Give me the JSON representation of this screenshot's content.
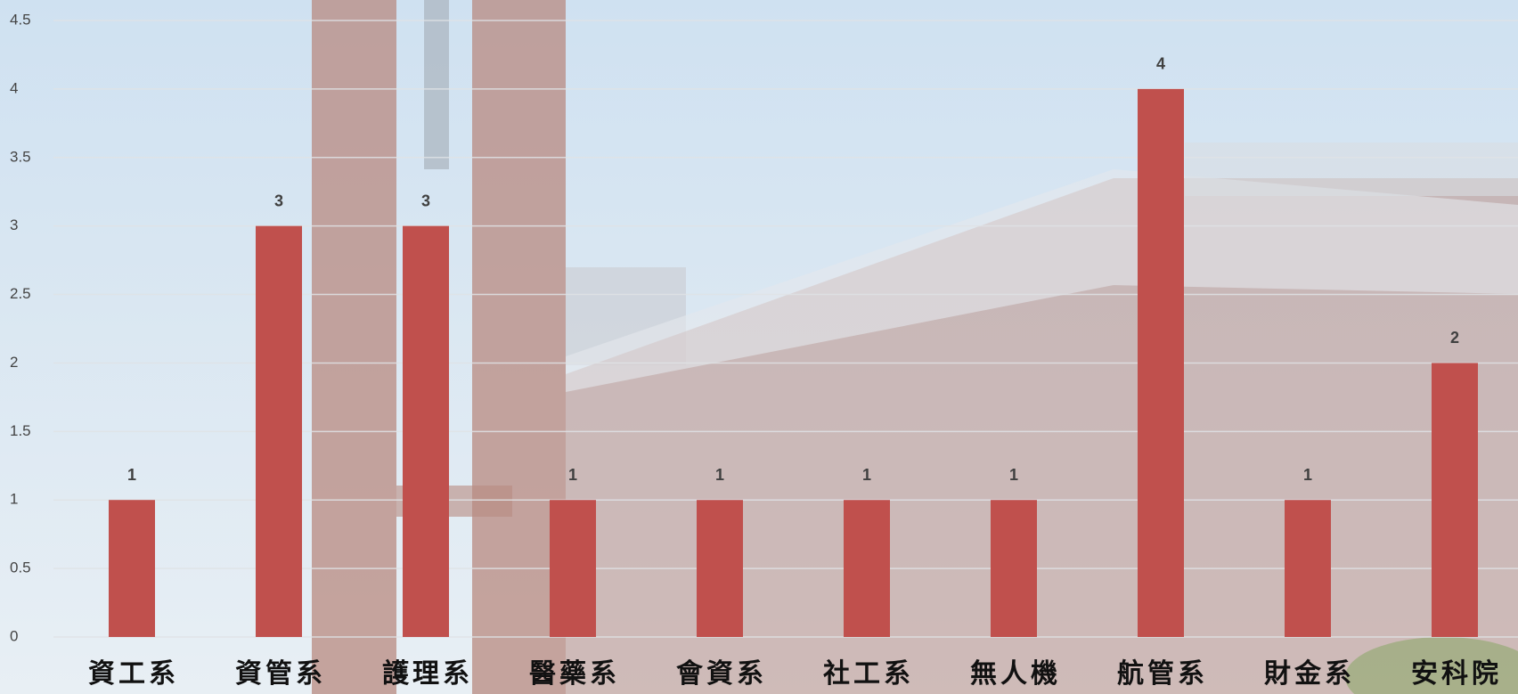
{
  "chart_data": {
    "type": "bar",
    "categories": [
      "資工系",
      "資管系",
      "護理系",
      "醫藥系",
      "會資系",
      "社工系",
      "無人機",
      "航管系",
      "財金系",
      "安科院"
    ],
    "values": [
      1,
      3,
      3,
      1,
      1,
      1,
      1,
      4,
      1,
      2
    ],
    "color": "#c0504d",
    "ylim": [
      0,
      4.5
    ],
    "yticks": [
      0,
      0.5,
      1,
      1.5,
      2,
      2.5,
      3,
      3.5,
      4,
      4.5
    ],
    "grid": true
  }
}
